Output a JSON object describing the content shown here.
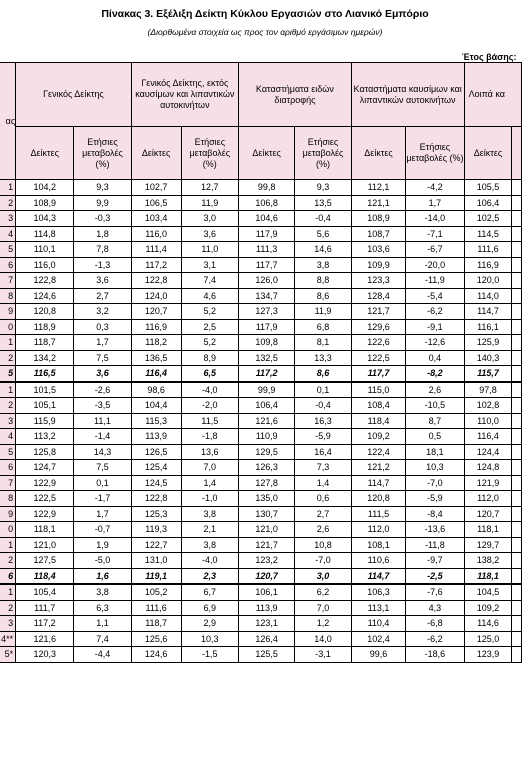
{
  "title": "Πίνακας 3. Εξέλιξη Δείκτη Κύκλου Εργασιών στο Λιανικό Εμπόριο",
  "subtitle": "(Διορθωμένα στοιχεία ως προς τον αριθμό εργάσιμων ημερών)",
  "base_year_label": "Έτος βάσης:",
  "header": {
    "period_label": "ας",
    "groups": [
      "Γενικός Δείκτης",
      "Γενικός Δείκτης, εκτός καυσίμων και λιπαντικών αυτοκινήτων",
      "Καταστήματα ειδών διατροφής",
      "Καταστήματα καυσίμων και λιπαντικών αυτοκινήτων",
      "Λοιπά κα"
    ],
    "index_label": "Δείκτες",
    "change_label": "Ετήσιες μεταβολές (%)"
  },
  "rows": [
    {
      "period": "1",
      "v": [
        "104,2",
        "9,3",
        "102,7",
        "12,7",
        "99,8",
        "9,3",
        "112,1",
        "-4,2",
        "105,5"
      ]
    },
    {
      "period": "2",
      "v": [
        "108,9",
        "9,9",
        "106,5",
        "11,9",
        "106,8",
        "13,5",
        "121,1",
        "1,7",
        "106,4"
      ]
    },
    {
      "period": "3",
      "v": [
        "104,3",
        "-0,3",
        "103,4",
        "3,0",
        "104,6",
        "-0,4",
        "108,9",
        "-14,0",
        "102,5"
      ]
    },
    {
      "period": "4",
      "v": [
        "114,8",
        "1,8",
        "116,0",
        "3,6",
        "117,9",
        "5,6",
        "108,7",
        "-7,1",
        "114,5"
      ]
    },
    {
      "period": "5",
      "v": [
        "110,1",
        "7,8",
        "111,4",
        "11,0",
        "111,3",
        "14,6",
        "103,6",
        "-6,7",
        "111,6"
      ]
    },
    {
      "period": "6",
      "v": [
        "116,0",
        "-1,3",
        "117,2",
        "3,1",
        "117,7",
        "3,8",
        "109,9",
        "-20,0",
        "116,9"
      ]
    },
    {
      "period": "7",
      "v": [
        "122,8",
        "3,6",
        "122,8",
        "7,4",
        "126,0",
        "8,8",
        "123,3",
        "-11,9",
        "120,0"
      ]
    },
    {
      "period": "8",
      "v": [
        "124,6",
        "2,7",
        "124,0",
        "4,6",
        "134,7",
        "8,6",
        "128,4",
        "-5,4",
        "114,0"
      ]
    },
    {
      "period": "9",
      "v": [
        "120,8",
        "3,2",
        "120,7",
        "5,2",
        "127,3",
        "11,9",
        "121,7",
        "-6,2",
        "114,7"
      ]
    },
    {
      "period": "0",
      "v": [
        "118,9",
        "0,3",
        "116,9",
        "2,5",
        "117,9",
        "6,8",
        "129,6",
        "-9,1",
        "116,1"
      ]
    },
    {
      "period": "1",
      "v": [
        "118,7",
        "1,7",
        "118,2",
        "5,2",
        "109,8",
        "8,1",
        "122,6",
        "-12,6",
        "125,9"
      ]
    },
    {
      "period": "2",
      "v": [
        "134,2",
        "7,5",
        "136,5",
        "8,9",
        "132,5",
        "13,3",
        "122,5",
        "0,4",
        "140,3"
      ]
    },
    {
      "period": "5",
      "total": true,
      "v": [
        "116,5",
        "3,6",
        "116,4",
        "6,5",
        "117,2",
        "8,6",
        "117,7",
        "-8,2",
        "115,7"
      ]
    },
    {
      "period": "1",
      "v": [
        "101,5",
        "-2,6",
        "98,6",
        "-4,0",
        "99,9",
        "0,1",
        "115,0",
        "2,6",
        "97,8"
      ]
    },
    {
      "period": "2",
      "v": [
        "105,1",
        "-3,5",
        "104,4",
        "-2,0",
        "106,4",
        "-0,4",
        "108,4",
        "-10,5",
        "102,8"
      ]
    },
    {
      "period": "3",
      "v": [
        "115,9",
        "11,1",
        "115,3",
        "11,5",
        "121,6",
        "16,3",
        "118,4",
        "8,7",
        "110,0"
      ]
    },
    {
      "period": "4",
      "v": [
        "113,2",
        "-1,4",
        "113,9",
        "-1,8",
        "110,9",
        "-5,9",
        "109,2",
        "0,5",
        "116,4"
      ]
    },
    {
      "period": "5",
      "v": [
        "125,8",
        "14,3",
        "126,5",
        "13,6",
        "129,5",
        "16,4",
        "122,4",
        "18,1",
        "124,4"
      ]
    },
    {
      "period": "6",
      "v": [
        "124,7",
        "7,5",
        "125,4",
        "7,0",
        "126,3",
        "7,3",
        "121,2",
        "10,3",
        "124,8"
      ]
    },
    {
      "period": "7",
      "v": [
        "122,9",
        "0,1",
        "124,5",
        "1,4",
        "127,8",
        "1,4",
        "114,7",
        "-7,0",
        "121,9"
      ]
    },
    {
      "period": "8",
      "v": [
        "122,5",
        "-1,7",
        "122,8",
        "-1,0",
        "135,0",
        "0,6",
        "120,8",
        "-5,9",
        "112,0"
      ]
    },
    {
      "period": "9",
      "v": [
        "122,9",
        "1,7",
        "125,3",
        "3,8",
        "130,7",
        "2,7",
        "111,5",
        "-8,4",
        "120,7"
      ]
    },
    {
      "period": "0",
      "v": [
        "118,1",
        "-0,7",
        "119,3",
        "2,1",
        "121,0",
        "2,6",
        "112,0",
        "-13,6",
        "118,1"
      ]
    },
    {
      "period": "1",
      "v": [
        "121,0",
        "1,9",
        "122,7",
        "3,8",
        "121,7",
        "10,8",
        "108,1",
        "-11,8",
        "129,7"
      ]
    },
    {
      "period": "2",
      "v": [
        "127,5",
        "-5,0",
        "131,0",
        "-4,0",
        "123,2",
        "-7,0",
        "110,6",
        "-9,7",
        "138,2"
      ]
    },
    {
      "period": "6",
      "total": true,
      "v": [
        "118,4",
        "1,6",
        "119,1",
        "2,3",
        "120,7",
        "3,0",
        "114,7",
        "-2,5",
        "118,1"
      ]
    },
    {
      "period": "1",
      "v": [
        "105,4",
        "3,8",
        "105,2",
        "6,7",
        "106,1",
        "6,2",
        "106,3",
        "-7,6",
        "104,5"
      ]
    },
    {
      "period": "2",
      "v": [
        "111,7",
        "6,3",
        "111,6",
        "6,9",
        "113,9",
        "7,0",
        "113,1",
        "4,3",
        "109,2"
      ]
    },
    {
      "period": "3",
      "v": [
        "117,2",
        "1,1",
        "118,7",
        "2,9",
        "123,1",
        "1,2",
        "110,4",
        "-6,8",
        "114,6"
      ]
    },
    {
      "period": "4**",
      "v": [
        "121,6",
        "7,4",
        "125,6",
        "10,3",
        "126,4",
        "14,0",
        "102,4",
        "-6,2",
        "125,0"
      ]
    },
    {
      "period": "5*",
      "v": [
        "120,3",
        "-4,4",
        "124,6",
        "-1,5",
        "125,5",
        "-3,1",
        "99,6",
        "-18,6",
        "123,9"
      ]
    }
  ]
}
